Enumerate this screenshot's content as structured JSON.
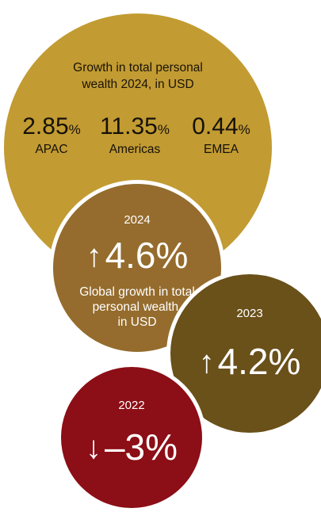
{
  "main": {
    "title_line1": "Growth in total personal",
    "title_line2": "wealth 2024, in USD",
    "regions": [
      {
        "value": "2.85",
        "unit": "%",
        "label": "APAC"
      },
      {
        "value": "11.35",
        "unit": "%",
        "label": "Americas"
      },
      {
        "value": "0.44",
        "unit": "%",
        "label": "EMEA"
      }
    ],
    "color": "#c29b32"
  },
  "y2024": {
    "year": "2024",
    "arrow": "↑",
    "value": "4.6%",
    "desc_line1": "Global growth in total",
    "desc_line2": "personal wealth,",
    "desc_line3": "in USD",
    "color": "#956c2d"
  },
  "y2023": {
    "year": "2023",
    "arrow": "↑",
    "value": "4.2%",
    "color": "#6a5019"
  },
  "y2022": {
    "year": "2022",
    "arrow": "↓",
    "value": "–3%",
    "color": "#8c0e16"
  }
}
